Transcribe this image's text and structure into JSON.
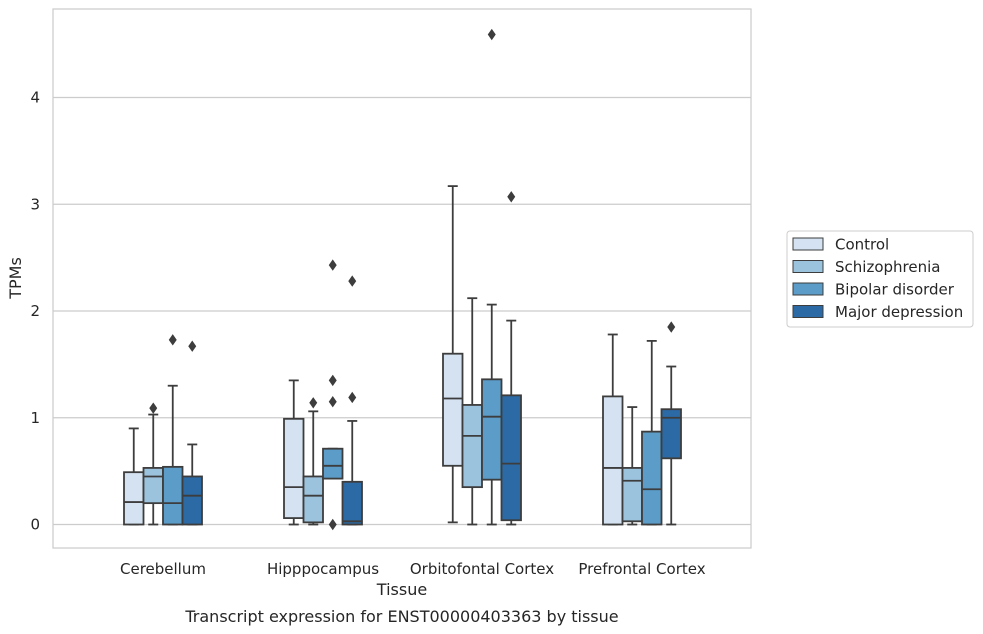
{
  "chart_data": {
    "type": "box",
    "title": "",
    "caption": "Transcript expression for ENST00000403363 by tissue",
    "xlabel": "Tissue",
    "ylabel": "TPMs",
    "ylim": [
      -0.22,
      4.82
    ],
    "yticks": [
      "0",
      "1",
      "2",
      "3",
      "4"
    ],
    "grid": "horizontal",
    "legend_position": "right",
    "categories": [
      "Cerebellum",
      "Hipppocampus",
      "Orbitofontal Cortex",
      "Prefrontal Cortex"
    ],
    "series": [
      {
        "name": "Control",
        "color": "#d4e2f1",
        "boxes": [
          {
            "min": 0.0,
            "q1": 0.0,
            "median": 0.21,
            "q3": 0.49,
            "max": 0.9,
            "outliers": []
          },
          {
            "min": 0.0,
            "q1": 0.06,
            "median": 0.35,
            "q3": 0.99,
            "max": 1.35,
            "outliers": []
          },
          {
            "min": 0.02,
            "q1": 0.55,
            "median": 1.18,
            "q3": 1.6,
            "max": 3.17,
            "outliers": []
          },
          {
            "min": 0.0,
            "q1": 0.0,
            "median": 0.53,
            "q3": 1.2,
            "max": 1.78,
            "outliers": []
          }
        ]
      },
      {
        "name": "Schizophrenia",
        "color": "#9cc3de",
        "boxes": [
          {
            "min": 0.0,
            "q1": 0.2,
            "median": 0.45,
            "q3": 0.53,
            "max": 1.03,
            "outliers": [
              1.09
            ]
          },
          {
            "min": 0.0,
            "q1": 0.02,
            "median": 0.27,
            "q3": 0.45,
            "max": 1.06,
            "outliers": [
              1.14
            ]
          },
          {
            "min": 0.0,
            "q1": 0.35,
            "median": 0.83,
            "q3": 1.12,
            "max": 2.12,
            "outliers": []
          },
          {
            "min": 0.0,
            "q1": 0.03,
            "median": 0.41,
            "q3": 0.53,
            "max": 1.1,
            "outliers": []
          }
        ]
      },
      {
        "name": "Bipolar disorder",
        "color": "#5b9cc8",
        "boxes": [
          {
            "min": 0.0,
            "q1": 0.0,
            "median": 0.2,
            "q3": 0.54,
            "max": 1.3,
            "outliers": [
              1.73
            ]
          },
          {
            "min": 0.43,
            "q1": 0.43,
            "median": 0.55,
            "q3": 0.71,
            "max": 0.71,
            "outliers": [
              2.43,
              1.35,
              1.15,
              0.0
            ]
          },
          {
            "min": 0.0,
            "q1": 0.42,
            "median": 1.01,
            "q3": 1.36,
            "max": 2.06,
            "outliers": [
              4.59
            ]
          },
          {
            "min": 0.0,
            "q1": 0.0,
            "median": 0.33,
            "q3": 0.87,
            "max": 1.72,
            "outliers": []
          }
        ]
      },
      {
        "name": "Major depression",
        "color": "#2c6aa5",
        "boxes": [
          {
            "min": 0.0,
            "q1": 0.0,
            "median": 0.27,
            "q3": 0.45,
            "max": 0.75,
            "outliers": [
              1.67
            ]
          },
          {
            "min": 0.0,
            "q1": 0.0,
            "median": 0.03,
            "q3": 0.4,
            "max": 0.97,
            "outliers": [
              2.28,
              1.19
            ]
          },
          {
            "min": 0.0,
            "q1": 0.04,
            "median": 0.57,
            "q3": 1.21,
            "max": 1.91,
            "outliers": [
              3.07
            ]
          },
          {
            "min": 0.0,
            "q1": 0.62,
            "median": 1.0,
            "q3": 1.08,
            "max": 1.48,
            "outliers": [
              1.85
            ]
          }
        ]
      }
    ]
  }
}
